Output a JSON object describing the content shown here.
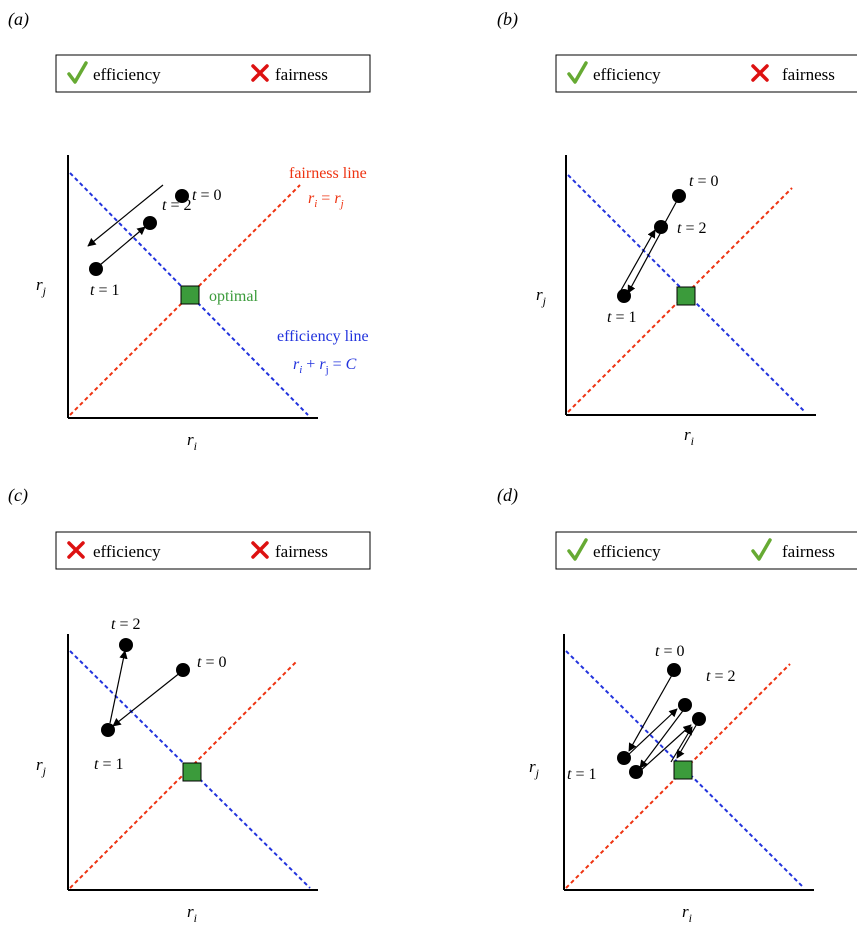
{
  "colors": {
    "efficiency_line": "#2233dd",
    "fairness_line": "#ee3311",
    "check": "#66aa33",
    "cross": "#dd1111",
    "optimal": "#3b9b3b",
    "optimal_text": "#3b9b3b",
    "axis": "#000000"
  },
  "common": {
    "efficiency_label": "efficiency",
    "fairness_label": "fairness",
    "x_axis_var": "r",
    "x_axis_sub": "i",
    "y_axis_var": "r",
    "y_axis_sub": "j",
    "t_var": "t",
    "eq": " = "
  },
  "annotations": {
    "fairness_line_title": "fairness line",
    "fairness_eq_a": "r",
    "fairness_eq_a_sub": "i",
    "fairness_eq_mid": " = ",
    "fairness_eq_b": "r",
    "fairness_eq_b_sub": "j",
    "optimal_label": "optimal",
    "efficiency_line_title": "efficiency line",
    "eff_eq_a": "r",
    "eff_eq_a_sub": "i",
    "eff_eq_plus": " + ",
    "eff_eq_b": "r",
    "eff_eq_b_sub": "j",
    "eff_eq_mid": " = ",
    "eff_eq_c": "C"
  },
  "panels": [
    {
      "id": "a",
      "label": "(a)",
      "efficiency_status": "check",
      "fairness_status": "cross",
      "t_labels": [
        "0",
        "2",
        "1"
      ]
    },
    {
      "id": "b",
      "label": "(b)",
      "efficiency_status": "check",
      "fairness_status": "cross",
      "t_labels": [
        "0",
        "2",
        "1"
      ]
    },
    {
      "id": "c",
      "label": "(c)",
      "efficiency_status": "cross",
      "fairness_status": "cross",
      "t_labels": [
        "2",
        "0",
        "1"
      ]
    },
    {
      "id": "d",
      "label": "(d)",
      "efficiency_status": "check",
      "fairness_status": "check",
      "t_labels": [
        "0",
        "2",
        "1"
      ]
    }
  ]
}
